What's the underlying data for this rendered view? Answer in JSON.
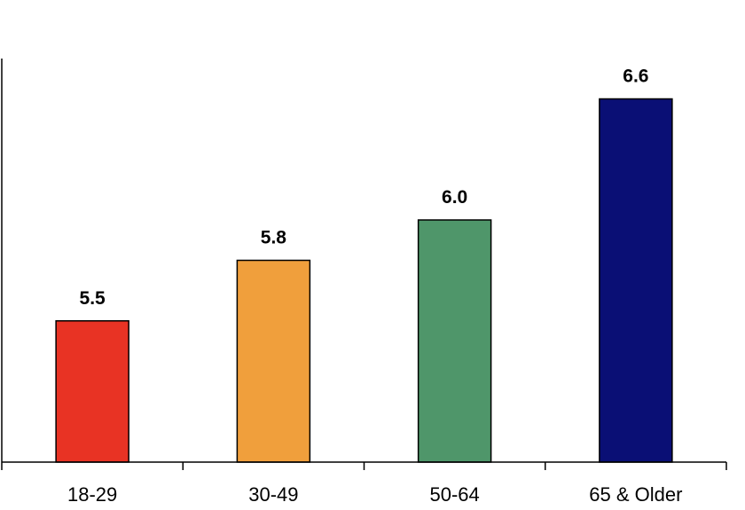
{
  "chart_data": {
    "type": "bar",
    "categories": [
      "18-29",
      "30-49",
      "50-64",
      "65 & Older"
    ],
    "values": [
      5.5,
      5.8,
      6.0,
      6.6
    ],
    "data_labels": [
      "5.5",
      "5.8",
      "6.0",
      "6.6"
    ],
    "colors": [
      "#e83324",
      "#f09f3c",
      "#4f966a",
      "#0a0f75"
    ],
    "title": "",
    "xlabel": "",
    "ylabel": "",
    "ylim": [
      4.8,
      6.8
    ],
    "grid": false,
    "legend": "none"
  }
}
